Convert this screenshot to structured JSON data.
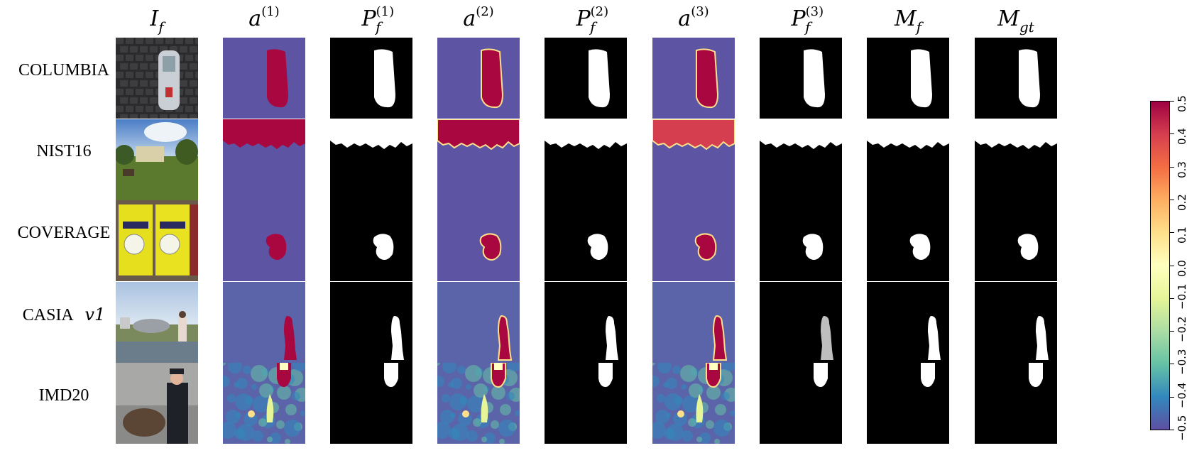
{
  "columns": [
    {
      "id": "If",
      "base": "I",
      "sub": "f",
      "sup": ""
    },
    {
      "id": "a1",
      "base": "a",
      "sub": "",
      "sup": "(1)"
    },
    {
      "id": "Pf1",
      "base": "P",
      "sub": "f",
      "sup": "(1)"
    },
    {
      "id": "a2",
      "base": "a",
      "sub": "",
      "sup": "(2)"
    },
    {
      "id": "Pf2",
      "base": "P",
      "sub": "f",
      "sup": "(2)"
    },
    {
      "id": "a3",
      "base": "a",
      "sub": "",
      "sup": "(3)"
    },
    {
      "id": "Pf3",
      "base": "P",
      "sub": "f",
      "sup": "(3)"
    },
    {
      "id": "Mf",
      "base": "M",
      "sub": "f",
      "sup": ""
    },
    {
      "id": "Mgt",
      "base": "M",
      "sub": "gt",
      "sup": ""
    }
  ],
  "rows": [
    {
      "label": "COLUMBIA",
      "label_italic": ""
    },
    {
      "label": "NIST16",
      "label_italic": ""
    },
    {
      "label": "COVERAGE",
      "label_italic": ""
    },
    {
      "label": "CASIA",
      "label_italic": "v1"
    },
    {
      "label": "IMD20",
      "label_italic": ""
    }
  ],
  "colorbar": {
    "min": -0.5,
    "max": 0.5,
    "ticks": [
      "0.5",
      "0.4",
      "0.3",
      "0.2",
      "0.1",
      "0.0",
      "−0.1",
      "−0.2",
      "−0.3",
      "−0.4",
      "−0.5"
    ],
    "colors": [
      "#9e0142",
      "#d53e4f",
      "#f46d43",
      "#fdae61",
      "#fee08b",
      "#ffffbf",
      "#e6f598",
      "#abdda4",
      "#66c2a5",
      "#3288bd",
      "#5e4fa2"
    ]
  },
  "colors": {
    "bg_map": "#5e54a4",
    "hot": "#a8073f",
    "mask_bg": "#000000",
    "mask_fg": "#ffffff"
  }
}
